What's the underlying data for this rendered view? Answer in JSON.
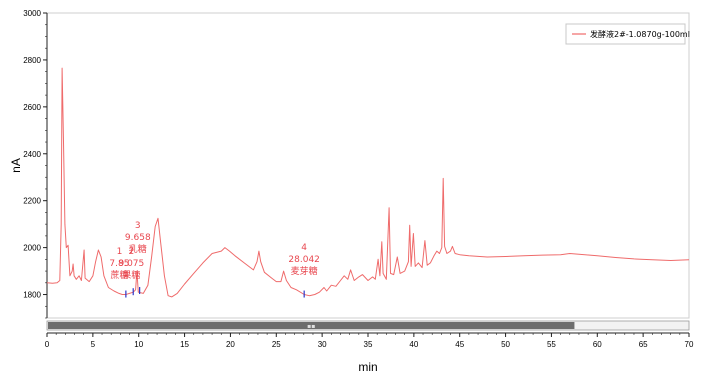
{
  "chart_data": {
    "type": "line",
    "title": "",
    "xlabel": "min",
    "ylabel": "nA",
    "xlim": [
      0,
      70
    ],
    "ylim": [
      1700,
      3000
    ],
    "x_ticks": [
      0,
      5,
      10,
      15,
      20,
      25,
      30,
      35,
      40,
      45,
      50,
      55,
      60,
      65,
      70
    ],
    "y_ticks": [
      1800,
      2000,
      2200,
      2400,
      2600,
      2800,
      3000
    ],
    "grid": false,
    "legend_position": "top-right",
    "line_color": "#ef6b6b",
    "series": [
      {
        "name": "发酵液2#-1.0870g-100ml",
        "points": [
          [
            0,
            1850
          ],
          [
            0.6,
            1848
          ],
          [
            1.1,
            1850
          ],
          [
            1.4,
            1860
          ],
          [
            1.55,
            2100
          ],
          [
            1.65,
            2765
          ],
          [
            1.8,
            2450
          ],
          [
            1.95,
            2100
          ],
          [
            2.1,
            2000
          ],
          [
            2.3,
            2010
          ],
          [
            2.5,
            1880
          ],
          [
            2.75,
            1900
          ],
          [
            2.85,
            1930
          ],
          [
            2.95,
            1880
          ],
          [
            3.2,
            1865
          ],
          [
            3.5,
            1880
          ],
          [
            3.75,
            1860
          ],
          [
            4.05,
            1990
          ],
          [
            4.15,
            1870
          ],
          [
            4.6,
            1855
          ],
          [
            5.0,
            1880
          ],
          [
            5.3,
            1940
          ],
          [
            5.6,
            1990
          ],
          [
            5.9,
            1960
          ],
          [
            6.2,
            1880
          ],
          [
            6.7,
            1830
          ],
          [
            7.3,
            1815
          ],
          [
            7.85,
            1805
          ],
          [
            8.2,
            1800
          ],
          [
            8.6,
            1800
          ],
          [
            9.0,
            1805
          ],
          [
            9.4,
            1810
          ],
          [
            9.66,
            1820
          ],
          [
            9.8,
            1900
          ],
          [
            9.95,
            1810
          ],
          [
            10.5,
            1805
          ],
          [
            11.0,
            1840
          ],
          [
            11.4,
            1960
          ],
          [
            11.8,
            2090
          ],
          [
            12.1,
            2125
          ],
          [
            12.4,
            2020
          ],
          [
            12.8,
            1880
          ],
          [
            13.2,
            1795
          ],
          [
            13.6,
            1790
          ],
          [
            14.2,
            1805
          ],
          [
            15.0,
            1845
          ],
          [
            16.0,
            1890
          ],
          [
            17.0,
            1935
          ],
          [
            18.0,
            1975
          ],
          [
            19.0,
            1985
          ],
          [
            19.4,
            2000
          ],
          [
            19.9,
            1985
          ],
          [
            20.5,
            1965
          ],
          [
            21.5,
            1935
          ],
          [
            22.5,
            1905
          ],
          [
            22.9,
            1940
          ],
          [
            23.1,
            1985
          ],
          [
            23.3,
            1940
          ],
          [
            23.7,
            1895
          ],
          [
            24.5,
            1870
          ],
          [
            25.0,
            1855
          ],
          [
            25.5,
            1855
          ],
          [
            25.8,
            1900
          ],
          [
            26.1,
            1860
          ],
          [
            26.6,
            1830
          ],
          [
            27.2,
            1820
          ],
          [
            28.04,
            1800
          ],
          [
            28.6,
            1795
          ],
          [
            29.2,
            1800
          ],
          [
            29.7,
            1810
          ],
          [
            30.2,
            1830
          ],
          [
            30.5,
            1815
          ],
          [
            31.0,
            1840
          ],
          [
            31.5,
            1835
          ],
          [
            32.0,
            1860
          ],
          [
            32.4,
            1880
          ],
          [
            32.8,
            1865
          ],
          [
            33.1,
            1905
          ],
          [
            33.5,
            1860
          ],
          [
            34.0,
            1875
          ],
          [
            34.4,
            1885
          ],
          [
            35.0,
            1860
          ],
          [
            35.5,
            1875
          ],
          [
            35.8,
            1865
          ],
          [
            36.1,
            1950
          ],
          [
            36.3,
            1880
          ],
          [
            36.5,
            2025
          ],
          [
            36.65,
            1890
          ],
          [
            37.0,
            1865
          ],
          [
            37.3,
            2170
          ],
          [
            37.45,
            1890
          ],
          [
            37.8,
            1885
          ],
          [
            38.2,
            1960
          ],
          [
            38.5,
            1890
          ],
          [
            39.0,
            1900
          ],
          [
            39.4,
            1940
          ],
          [
            39.55,
            2095
          ],
          [
            39.7,
            1920
          ],
          [
            39.95,
            2060
          ],
          [
            40.15,
            1920
          ],
          [
            40.5,
            1935
          ],
          [
            40.9,
            1915
          ],
          [
            41.2,
            2030
          ],
          [
            41.45,
            1925
          ],
          [
            41.8,
            1935
          ],
          [
            42.2,
            1965
          ],
          [
            42.5,
            1985
          ],
          [
            42.8,
            1975
          ],
          [
            43.05,
            2000
          ],
          [
            43.2,
            2295
          ],
          [
            43.35,
            2005
          ],
          [
            43.6,
            1975
          ],
          [
            44.0,
            1985
          ],
          [
            44.2,
            2005
          ],
          [
            44.5,
            1975
          ],
          [
            45.0,
            1970
          ],
          [
            46.0,
            1965
          ],
          [
            48.0,
            1960
          ],
          [
            50.0,
            1962
          ],
          [
            52.0,
            1965
          ],
          [
            54.0,
            1968
          ],
          [
            56.0,
            1970
          ],
          [
            57.0,
            1975
          ],
          [
            58.0,
            1972
          ],
          [
            60.0,
            1965
          ],
          [
            62.0,
            1958
          ],
          [
            64.0,
            1952
          ],
          [
            66.0,
            1948
          ],
          [
            68.0,
            1945
          ],
          [
            70.0,
            1948
          ]
        ]
      }
    ],
    "annotations": [
      {
        "id": "1",
        "rt": "7.85",
        "name": "蔗糖",
        "x": 8.6,
        "y": 1800
      },
      {
        "id": "2",
        "rt": "9.075",
        "name": "果糖",
        "x": 9.4,
        "y": 1810
      },
      {
        "id": "3",
        "rt": "9.658",
        "name": "乳糖",
        "x": 10.1,
        "y": 1815
      },
      {
        "id": "4",
        "rt": "28.042",
        "name": "麦芽糖",
        "x": 28.04,
        "y": 1800
      }
    ]
  },
  "scrollbar": {
    "thumb_fraction": 0.82,
    "grip": "▪▪"
  }
}
